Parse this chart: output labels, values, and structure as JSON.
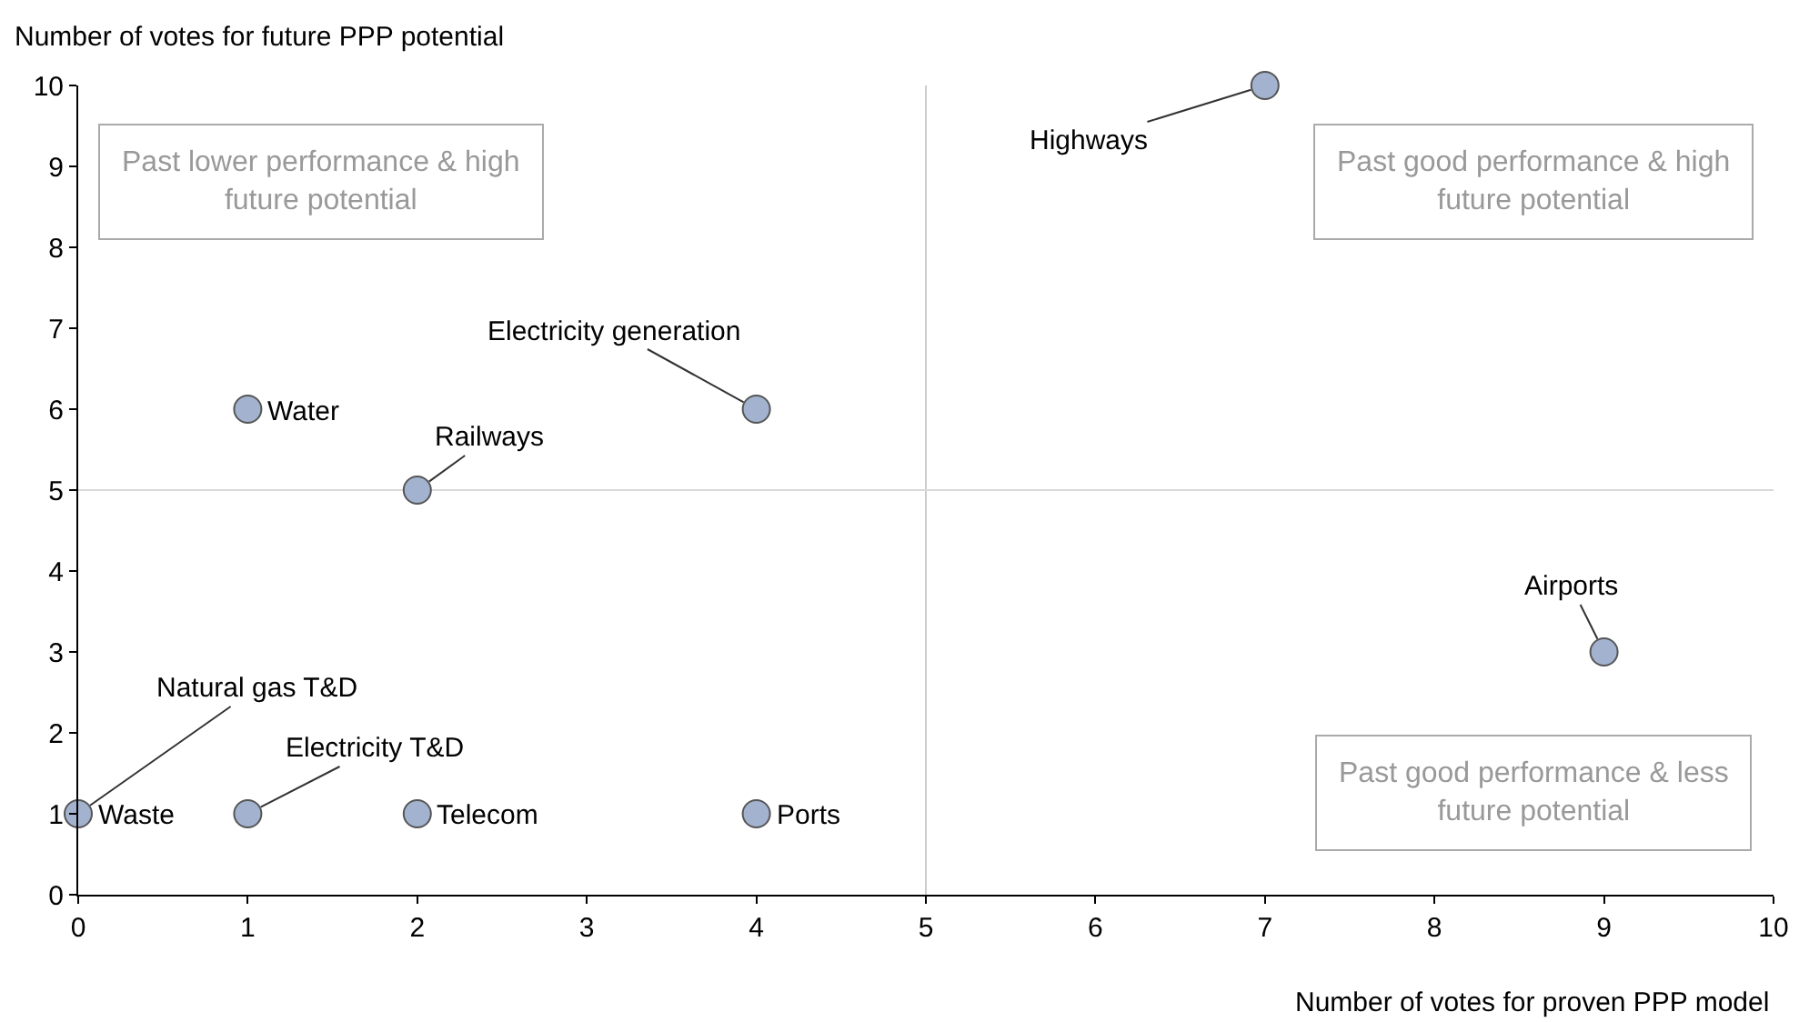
{
  "chart_data": {
    "type": "scatter",
    "xlabel": "Number of votes for proven PPP model",
    "ylabel": "Number of votes for future PPP potential",
    "x": [
      7,
      4,
      2,
      9,
      0,
      1,
      1,
      2,
      4
    ],
    "values": [
      10,
      6,
      5,
      3,
      1,
      1,
      6,
      1,
      1
    ],
    "color": "#a3b3cf",
    "marker": "circle",
    "xlim": [
      0,
      10
    ],
    "xticks": [
      0,
      1,
      2,
      3,
      4,
      5,
      6,
      7,
      8,
      9,
      10
    ],
    "ylim": [
      0,
      10
    ],
    "yticks": [
      0,
      1,
      2,
      3,
      4,
      5,
      6,
      7,
      8,
      9,
      10
    ],
    "grid": false,
    "legend": false,
    "ref_lines": [
      {
        "axis": "x",
        "value": 5,
        "color": "#cccccc"
      },
      {
        "axis": "y",
        "value": 5,
        "color": "#d9d9d9"
      }
    ],
    "annotations": [
      "Past lower performance & high future potential",
      "Past good performance & high future potential",
      "Past good performance & less future potential",
      {
        "text": "Highways",
        "x": 7,
        "y": 10
      },
      {
        "text": "Electricity generation",
        "x": 4,
        "y": 6
      },
      {
        "text": "Railways",
        "x": 2,
        "y": 5
      },
      {
        "text": "Airports",
        "x": 9,
        "y": 3
      },
      {
        "text": "Natural gas T&D",
        "x": 0,
        "y": 1
      },
      {
        "text": "Electricity T&D",
        "x": 1,
        "y": 1
      },
      {
        "text": "Water",
        "x": 1,
        "y": 6
      },
      {
        "text": "Waste",
        "x": 0,
        "y": 1
      },
      {
        "text": "Telecom",
        "x": 2,
        "y": 1
      },
      {
        "text": "Ports",
        "x": 4,
        "y": 1
      }
    ]
  }
}
